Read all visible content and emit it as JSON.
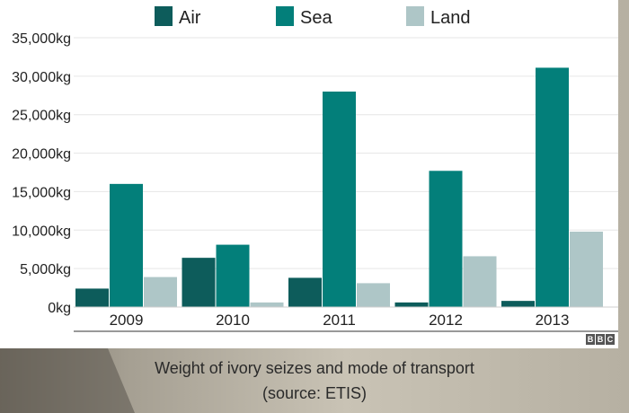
{
  "chart_data": {
    "type": "bar",
    "categories": [
      "2009",
      "2010",
      "2011",
      "2012",
      "2013"
    ],
    "series": [
      {
        "name": "Air",
        "values": [
          2400,
          6400,
          3800,
          600,
          800
        ]
      },
      {
        "name": "Sea",
        "values": [
          16000,
          8100,
          28000,
          17700,
          31100
        ]
      },
      {
        "name": "Land",
        "values": [
          3900,
          600,
          3100,
          6600,
          9800
        ]
      }
    ],
    "ylim": [
      0,
      35000
    ],
    "yticks": [
      0,
      5000,
      10000,
      15000,
      20000,
      25000,
      30000,
      35000
    ],
    "ytick_labels": [
      "0kg",
      "5,000kg",
      "10,000kg",
      "15,000kg",
      "20,000kg",
      "25,000kg",
      "30,000kg",
      "35,000kg"
    ],
    "grid": true,
    "legend_position": "top",
    "colors": {
      "Air": "#0d5c5b",
      "Sea": "#037f7a",
      "Land": "#aec6c7"
    }
  },
  "caption": {
    "line1": "Weight of ivory seizes and mode of transport",
    "line2": "(source: ETIS)"
  },
  "logo": {
    "letters": [
      "B",
      "B",
      "C"
    ]
  },
  "colors": {
    "panel": "#ffffff",
    "grid": "#e6e6e6",
    "axis": "#333333"
  }
}
